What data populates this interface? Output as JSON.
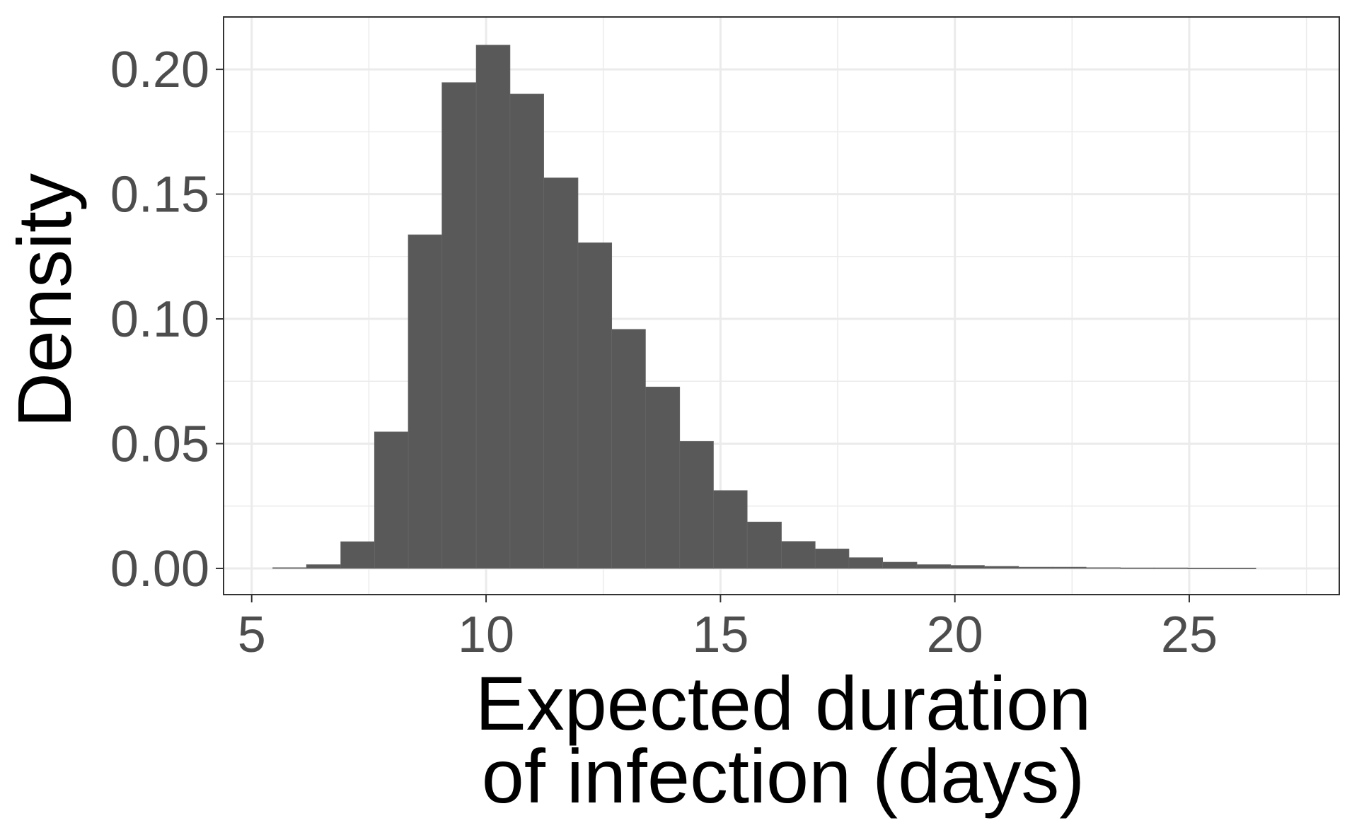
{
  "chart_data": {
    "type": "bar",
    "subtype": "histogram",
    "title": "",
    "xlabel_lines": [
      "Expected duration",
      "of infection (days)"
    ],
    "ylabel": "Density",
    "xlim": [
      4.4,
      28.2
    ],
    "ylim": [
      -0.0105,
      0.221
    ],
    "x_ticks": [
      5,
      10,
      15,
      20,
      25
    ],
    "x_tick_labels": [
      "5",
      "10",
      "15",
      "20",
      "25"
    ],
    "y_ticks": [
      0.0,
      0.05,
      0.1,
      0.15,
      0.2
    ],
    "y_tick_labels": [
      "0.00",
      "0.05",
      "0.10",
      "0.15",
      "0.20"
    ],
    "x_minor_ticks": [
      7.5,
      12.5,
      17.5,
      22.5,
      27.5
    ],
    "y_minor_ticks": [
      0.025,
      0.075,
      0.125,
      0.175
    ],
    "grid": true,
    "bin_edges": [
      5.45,
      6.17,
      6.9,
      7.62,
      8.34,
      9.06,
      9.79,
      10.51,
      11.23,
      11.96,
      12.68,
      13.4,
      14.13,
      14.85,
      15.57,
      16.3,
      17.02,
      17.74,
      18.46,
      19.19,
      19.91,
      20.63,
      21.36,
      22.08,
      22.8,
      23.53,
      24.25,
      24.97,
      25.7,
      26.42
    ],
    "bin_values": [
      0.0003,
      0.0015,
      0.0107,
      0.0547,
      0.1337,
      0.1947,
      0.2097,
      0.1901,
      0.1565,
      0.1305,
      0.0958,
      0.0727,
      0.0509,
      0.0312,
      0.0186,
      0.0108,
      0.0078,
      0.0043,
      0.0025,
      0.0015,
      0.0012,
      0.0008,
      0.0005,
      0.0005,
      0.0003,
      0.0002,
      0.0002,
      0.0001,
      0.0001
    ],
    "bar_color": "#595959",
    "bar_edge_color": "#666666",
    "grid_color": "#ebebeb",
    "panel_border_color": "#333333",
    "background": "#ffffff"
  }
}
